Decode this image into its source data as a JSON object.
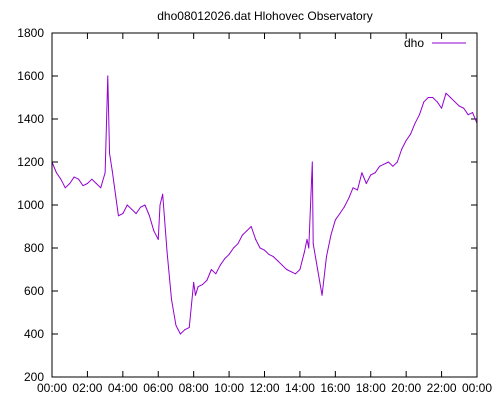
{
  "chart_data": {
    "type": "line",
    "title": "dho08012026.dat Hlohovec Observatory",
    "xlabel": "",
    "ylabel": "",
    "xlim": [
      0,
      24
    ],
    "ylim": [
      200,
      1800
    ],
    "x_ticks": [
      "00:00",
      "02:00",
      "04:00",
      "06:00",
      "08:00",
      "10:00",
      "12:00",
      "14:00",
      "16:00",
      "18:00",
      "20:00",
      "22:00",
      "00:00"
    ],
    "y_ticks": [
      200,
      400,
      600,
      800,
      1000,
      1200,
      1400,
      1600,
      1800
    ],
    "grid": false,
    "legend": "top-right",
    "series": [
      {
        "name": "dho",
        "color": "#9400d3",
        "x": [
          0.0,
          0.25,
          0.5,
          0.75,
          1.0,
          1.25,
          1.5,
          1.75,
          2.0,
          2.25,
          2.5,
          2.75,
          3.0,
          3.15,
          3.25,
          3.4,
          3.5,
          3.75,
          4.0,
          4.25,
          4.5,
          4.75,
          5.0,
          5.25,
          5.5,
          5.75,
          6.0,
          6.1,
          6.25,
          6.5,
          6.75,
          7.0,
          7.25,
          7.5,
          7.75,
          8.0,
          8.1,
          8.25,
          8.5,
          8.75,
          9.0,
          9.25,
          9.5,
          9.75,
          10.0,
          10.25,
          10.5,
          10.75,
          11.0,
          11.25,
          11.5,
          11.75,
          12.0,
          12.25,
          12.5,
          12.75,
          13.0,
          13.25,
          13.5,
          13.75,
          14.0,
          14.25,
          14.4,
          14.5,
          14.7,
          14.75,
          15.0,
          15.25,
          15.5,
          15.75,
          16.0,
          16.25,
          16.5,
          16.75,
          17.0,
          17.25,
          17.5,
          17.75,
          18.0,
          18.25,
          18.5,
          18.75,
          19.0,
          19.25,
          19.5,
          19.75,
          20.0,
          20.25,
          20.5,
          20.75,
          21.0,
          21.25,
          21.5,
          21.75,
          22.0,
          22.25,
          22.5,
          22.75,
          23.0,
          23.25,
          23.5,
          23.75,
          24.0
        ],
        "values": [
          1200,
          1150,
          1120,
          1080,
          1100,
          1130,
          1120,
          1090,
          1100,
          1120,
          1100,
          1080,
          1150,
          1600,
          1240,
          1160,
          1100,
          950,
          960,
          1000,
          980,
          960,
          990,
          1000,
          950,
          880,
          840,
          1000,
          1050,
          780,
          560,
          440,
          400,
          420,
          430,
          640,
          580,
          620,
          630,
          650,
          700,
          680,
          720,
          750,
          770,
          800,
          820,
          860,
          880,
          900,
          840,
          800,
          790,
          770,
          760,
          740,
          720,
          700,
          690,
          680,
          700,
          780,
          840,
          800,
          1200,
          820,
          700,
          580,
          760,
          860,
          930,
          960,
          990,
          1030,
          1080,
          1070,
          1150,
          1100,
          1140,
          1150,
          1180,
          1190,
          1200,
          1180,
          1200,
          1260,
          1300,
          1330,
          1380,
          1420,
          1480,
          1500,
          1500,
          1480,
          1450,
          1520,
          1500,
          1480,
          1460,
          1450,
          1420,
          1430,
          1380
        ]
      }
    ]
  }
}
